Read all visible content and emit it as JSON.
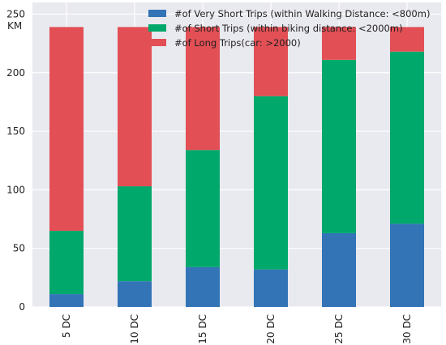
{
  "chart_data": {
    "type": "bar",
    "stacked": true,
    "categories": [
      "5 DC",
      "10 DC",
      "15 DC",
      "20 DC",
      "25 DC",
      "30 DC"
    ],
    "series": [
      {
        "name": "#of Very Short Trips (within Walking Distance: <800m)",
        "color": "#3274b6",
        "values": [
          11,
          22,
          34,
          32,
          63,
          71
        ]
      },
      {
        "name": "#of Short Trips (within biking distance: <2000m)",
        "color": "#00a86b",
        "values": [
          54,
          81,
          100,
          148,
          148,
          147
        ]
      },
      {
        "name": "#of Long Trips(car: >2000)",
        "color": "#e24f55",
        "values": [
          174,
          136,
          105,
          59,
          28,
          21
        ]
      }
    ],
    "ylabel": "KM",
    "ylim": [
      0,
      260
    ],
    "yticks": [
      "0",
      "50",
      "100",
      "150",
      "200",
      "250"
    ],
    "grid": true,
    "background": "#e9e9f0",
    "legend_position": "top-right"
  }
}
